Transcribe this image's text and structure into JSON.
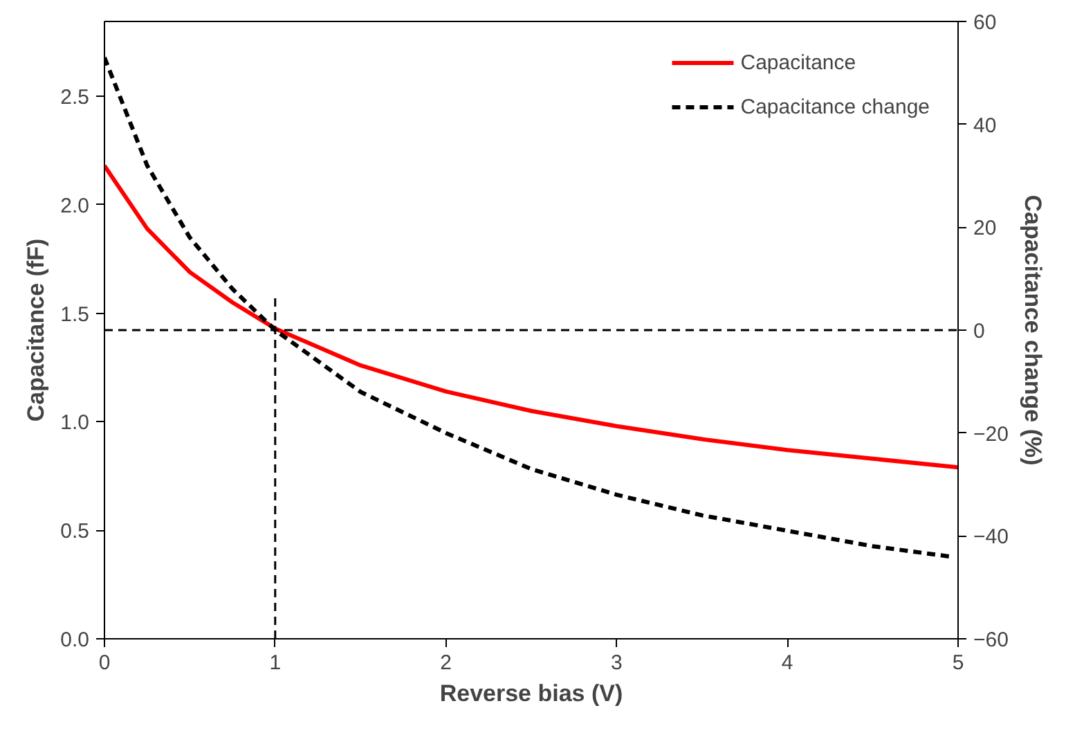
{
  "chart_data": {
    "type": "line",
    "xlabel": "Reverse bias (V)",
    "ylabel": "Capacitance (fF)",
    "y2label": "Capacitance change (%)",
    "xlim": [
      0,
      5
    ],
    "xticks": [
      0,
      1,
      2,
      3,
      4,
      5
    ],
    "ylim": [
      0,
      2.845
    ],
    "yticks": [
      {
        "value": 0,
        "label": "0.0"
      },
      {
        "value": 0.5,
        "label": "0.5"
      },
      {
        "value": 1,
        "label": "1.0"
      },
      {
        "value": 1.5,
        "label": "1.5"
      },
      {
        "value": 2,
        "label": "2.0"
      },
      {
        "value": 2.5,
        "label": "2.5"
      }
    ],
    "y2lim": [
      -60,
      60
    ],
    "y2ticks": [
      -60,
      -40,
      -20,
      0,
      20,
      40,
      60
    ],
    "grid": false,
    "legend": "top right",
    "series": [
      {
        "name": "Capacitance",
        "color": "#ff0000",
        "line_style": "solid",
        "x": [
          0,
          0.25,
          0.5,
          0.75,
          1,
          1.5,
          2,
          2.5,
          3,
          3.5,
          4,
          4.5,
          5
        ],
        "values": [
          2.18,
          1.89,
          1.69,
          1.55,
          1.43,
          1.26,
          1.14,
          1.05,
          0.98,
          0.92,
          0.87,
          0.83,
          0.79
        ]
      },
      {
        "name": "Capacitance change",
        "color": "#000000",
        "line_style": "dashed",
        "axis": "y2",
        "x": [
          0,
          0.25,
          0.5,
          0.75,
          1,
          1.5,
          2,
          2.5,
          3,
          3.5,
          4,
          4.5,
          4.95
        ],
        "values": [
          53,
          32,
          18,
          8,
          0,
          -12,
          -20,
          -27,
          -32,
          -36,
          -39,
          -42,
          -44
        ]
      },
      {
        "color": "#000000",
        "line_style": "dashed",
        "x": [
          1,
          1
        ],
        "values": [
          0,
          1.58
        ]
      }
    ],
    "ref_lines": [
      {
        "axis": "y2",
        "value": 0,
        "color": "#000000",
        "line_style": "dashed"
      }
    ]
  }
}
